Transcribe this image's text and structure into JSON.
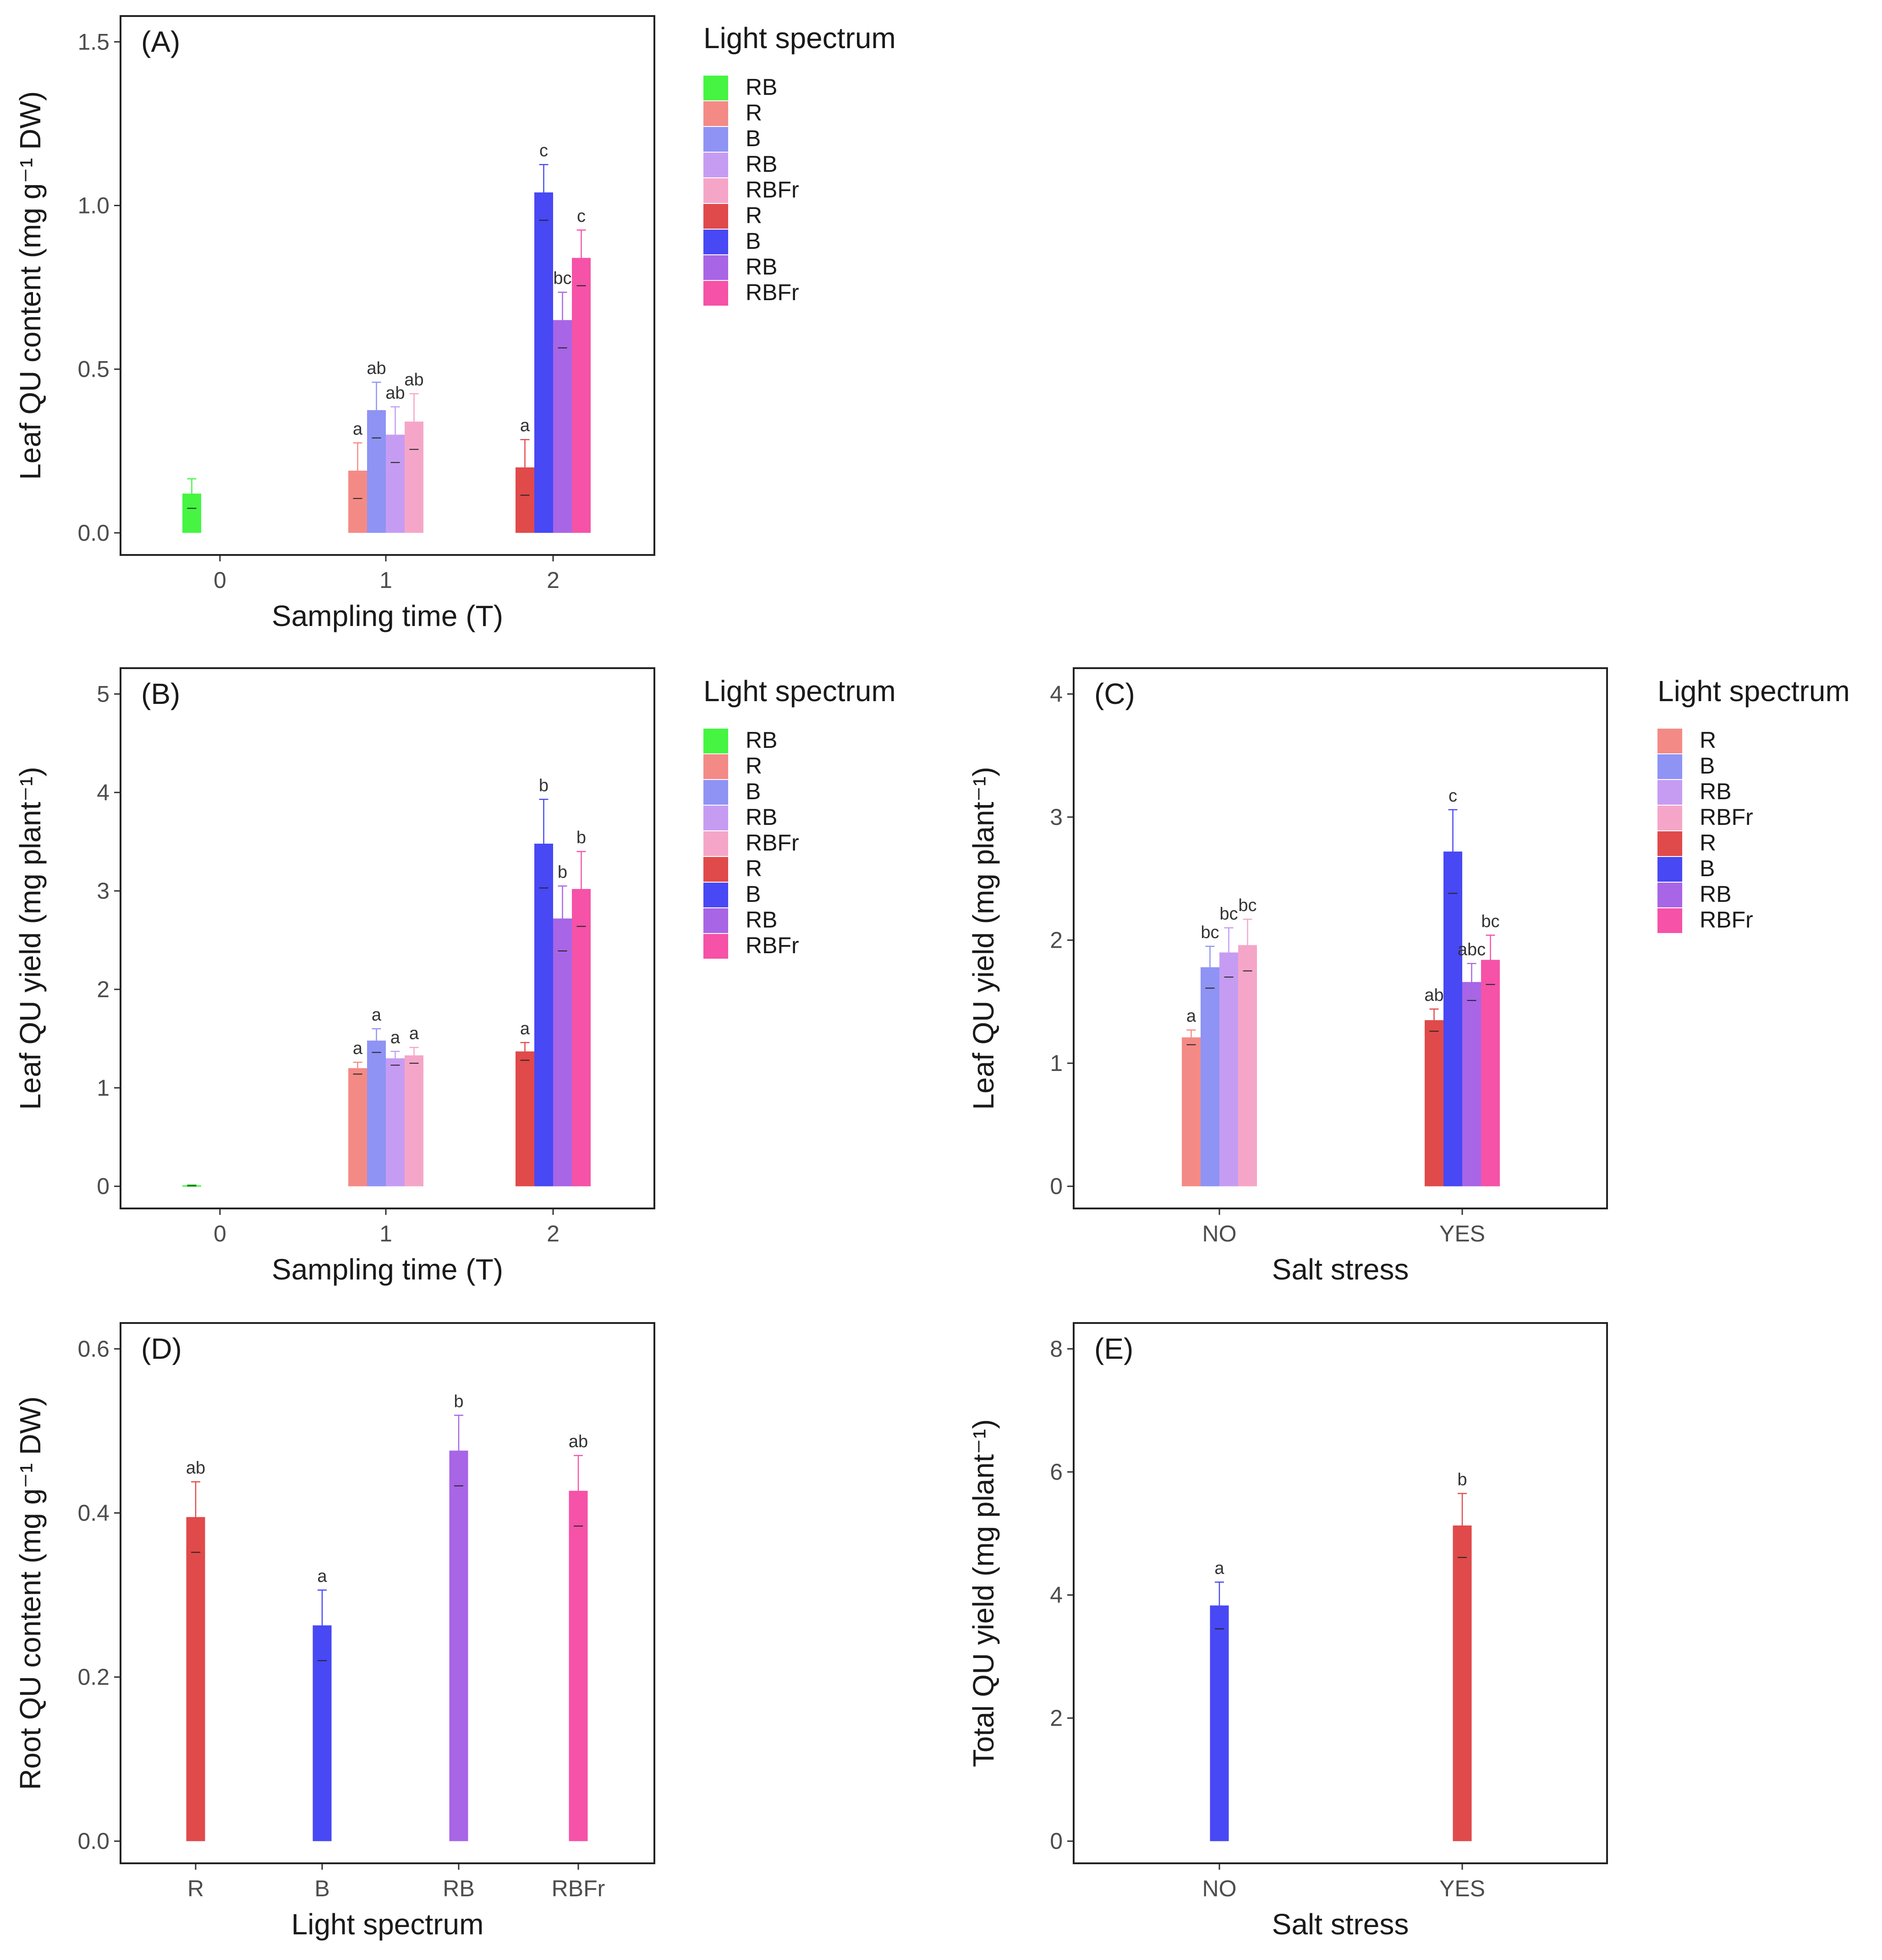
{
  "chart_data": [
    {
      "id": "A",
      "type": "bar",
      "panel_label": "(A)",
      "xlabel": "Sampling time (T)",
      "ylabel": "Leaf QU content (mg g⁻¹ DW)",
      "ylim": [
        0,
        1.5
      ],
      "yticks": [
        "0.0",
        "0.5",
        "1.0",
        "1.5"
      ],
      "ytick_values": [
        0,
        0.5,
        1.0,
        1.5
      ],
      "categories": [
        "0",
        "1",
        "2"
      ],
      "legend": {
        "title": "Light spectrum",
        "entries": [
          {
            "label": "RB",
            "color": "#45f542"
          },
          {
            "label": "R",
            "color": "#f48a85"
          },
          {
            "label": "B",
            "color": "#8f93f4"
          },
          {
            "label": "RB",
            "color": "#c69cf3"
          },
          {
            "label": "RBFr",
            "color": "#f5a6c8"
          },
          {
            "label": "R",
            "color": "#e04a4a"
          },
          {
            "label": "B",
            "color": "#4848f4"
          },
          {
            "label": "RB",
            "color": "#a865e6"
          },
          {
            "label": "RBFr",
            "color": "#f552a8"
          }
        ]
      },
      "bars": [
        {
          "category": "0",
          "offset": -1.5,
          "series": "RB",
          "color": "#45f542",
          "value": 0.12,
          "err": 0.045,
          "sig": ""
        },
        {
          "category": "1",
          "offset": -1.5,
          "series": "R",
          "color": "#f48a85",
          "value": 0.19,
          "err": 0.085,
          "sig": "a"
        },
        {
          "category": "1",
          "offset": -0.5,
          "series": "B",
          "color": "#8f93f4",
          "value": 0.375,
          "err": 0.085,
          "sig": "ab"
        },
        {
          "category": "1",
          "offset": 0.5,
          "series": "RB",
          "color": "#c69cf3",
          "value": 0.3,
          "err": 0.085,
          "sig": "ab"
        },
        {
          "category": "1",
          "offset": 1.5,
          "series": "RBFr",
          "color": "#f5a6c8",
          "value": 0.34,
          "err": 0.085,
          "sig": "ab"
        },
        {
          "category": "2",
          "offset": -1.5,
          "series": "R",
          "color": "#e04a4a",
          "value": 0.2,
          "err": 0.085,
          "sig": "a"
        },
        {
          "category": "2",
          "offset": -0.5,
          "series": "B",
          "color": "#4848f4",
          "value": 1.04,
          "err": 0.085,
          "sig": "c"
        },
        {
          "category": "2",
          "offset": 0.5,
          "series": "RB",
          "color": "#a865e6",
          "value": 0.65,
          "err": 0.085,
          "sig": "bc"
        },
        {
          "category": "2",
          "offset": 1.5,
          "series": "RBFr",
          "color": "#f552a8",
          "value": 0.84,
          "err": 0.085,
          "sig": "c"
        }
      ]
    },
    {
      "id": "B",
      "type": "bar",
      "panel_label": "(B)",
      "xlabel": "Sampling time (T)",
      "ylabel": "Leaf QU yield (mg plant⁻¹)",
      "ylim": [
        0,
        5
      ],
      "yticks": [
        "0",
        "1",
        "2",
        "3",
        "4",
        "5"
      ],
      "ytick_values": [
        0,
        1,
        2,
        3,
        4,
        5
      ],
      "categories": [
        "0",
        "1",
        "2"
      ],
      "legend": {
        "title": "Light spectrum",
        "entries": [
          {
            "label": "RB",
            "color": "#45f542"
          },
          {
            "label": "R",
            "color": "#f48a85"
          },
          {
            "label": "B",
            "color": "#8f93f4"
          },
          {
            "label": "RB",
            "color": "#c69cf3"
          },
          {
            "label": "RBFr",
            "color": "#f5a6c8"
          },
          {
            "label": "R",
            "color": "#e04a4a"
          },
          {
            "label": "B",
            "color": "#4848f4"
          },
          {
            "label": "RB",
            "color": "#a865e6"
          },
          {
            "label": "RBFr",
            "color": "#f552a8"
          }
        ]
      },
      "bars": [
        {
          "category": "0",
          "offset": -1.5,
          "series": "RB",
          "color": "#45f542",
          "value": 0.01,
          "err": 0.005,
          "sig": ""
        },
        {
          "category": "1",
          "offset": -1.5,
          "series": "R",
          "color": "#f48a85",
          "value": 1.2,
          "err": 0.06,
          "sig": "a"
        },
        {
          "category": "1",
          "offset": -0.5,
          "series": "B",
          "color": "#8f93f4",
          "value": 1.48,
          "err": 0.12,
          "sig": "a"
        },
        {
          "category": "1",
          "offset": 0.5,
          "series": "RB",
          "color": "#c69cf3",
          "value": 1.3,
          "err": 0.07,
          "sig": "a"
        },
        {
          "category": "1",
          "offset": 1.5,
          "series": "RBFr",
          "color": "#f5a6c8",
          "value": 1.33,
          "err": 0.08,
          "sig": "a"
        },
        {
          "category": "2",
          "offset": -1.5,
          "series": "R",
          "color": "#e04a4a",
          "value": 1.37,
          "err": 0.09,
          "sig": "a"
        },
        {
          "category": "2",
          "offset": -0.5,
          "series": "B",
          "color": "#4848f4",
          "value": 3.48,
          "err": 0.45,
          "sig": "b"
        },
        {
          "category": "2",
          "offset": 0.5,
          "series": "RB",
          "color": "#a865e6",
          "value": 2.72,
          "err": 0.33,
          "sig": "b"
        },
        {
          "category": "2",
          "offset": 1.5,
          "series": "RBFr",
          "color": "#f552a8",
          "value": 3.02,
          "err": 0.38,
          "sig": "b"
        }
      ]
    },
    {
      "id": "C",
      "type": "bar",
      "panel_label": "(C)",
      "xlabel": "Salt stress",
      "ylabel": "Leaf QU yield (mg plant⁻¹)",
      "ylim": [
        0,
        4
      ],
      "yticks": [
        "0",
        "1",
        "2",
        "3",
        "4"
      ],
      "ytick_values": [
        0,
        1,
        2,
        3,
        4
      ],
      "categories": [
        "NO",
        "YES"
      ],
      "legend": {
        "title": "Light spectrum",
        "entries": [
          {
            "label": "R",
            "color": "#f48a85"
          },
          {
            "label": "B",
            "color": "#8f93f4"
          },
          {
            "label": "RB",
            "color": "#c69cf3"
          },
          {
            "label": "RBFr",
            "color": "#f5a6c8"
          },
          {
            "label": "R",
            "color": "#e04a4a"
          },
          {
            "label": "B",
            "color": "#4848f4"
          },
          {
            "label": "RB",
            "color": "#a865e6"
          },
          {
            "label": "RBFr",
            "color": "#f552a8"
          }
        ]
      },
      "bars": [
        {
          "category": "NO",
          "offset": -1.5,
          "series": "R",
          "color": "#f48a85",
          "value": 1.21,
          "err": 0.06,
          "sig": "a"
        },
        {
          "category": "NO",
          "offset": -0.5,
          "series": "B",
          "color": "#8f93f4",
          "value": 1.78,
          "err": 0.17,
          "sig": "bc"
        },
        {
          "category": "NO",
          "offset": 0.5,
          "series": "RB",
          "color": "#c69cf3",
          "value": 1.9,
          "err": 0.2,
          "sig": "bc"
        },
        {
          "category": "NO",
          "offset": 1.5,
          "series": "RBFr",
          "color": "#f5a6c8",
          "value": 1.96,
          "err": 0.21,
          "sig": "bc"
        },
        {
          "category": "YES",
          "offset": -1.5,
          "series": "R",
          "color": "#e04a4a",
          "value": 1.35,
          "err": 0.09,
          "sig": "ab"
        },
        {
          "category": "YES",
          "offset": -0.5,
          "series": "B",
          "color": "#4848f4",
          "value": 2.72,
          "err": 0.34,
          "sig": "c"
        },
        {
          "category": "YES",
          "offset": 0.5,
          "series": "RB",
          "color": "#a865e6",
          "value": 1.66,
          "err": 0.15,
          "sig": "abc"
        },
        {
          "category": "YES",
          "offset": 1.5,
          "series": "RBFr",
          "color": "#f552a8",
          "value": 1.84,
          "err": 0.2,
          "sig": "bc"
        }
      ]
    },
    {
      "id": "D",
      "type": "bar",
      "panel_label": "(D)",
      "xlabel": "Light spectrum",
      "ylabel": "Root QU content (mg g⁻¹ DW)",
      "ylim": [
        0,
        0.6
      ],
      "yticks": [
        "0.0",
        "0.2",
        "0.4",
        "0.6"
      ],
      "ytick_values": [
        0,
        0.2,
        0.4,
        0.6
      ],
      "categories": [
        "R",
        "B",
        "RB",
        "RBFr"
      ],
      "bars": [
        {
          "category": "R",
          "offset": 0,
          "series": "R",
          "color": "#e04a4a",
          "value": 0.395,
          "err": 0.043,
          "sig": "ab"
        },
        {
          "category": "B",
          "offset": 0,
          "series": "B",
          "color": "#4848f4",
          "value": 0.263,
          "err": 0.043,
          "sig": "a"
        },
        {
          "category": "RB",
          "offset": 0,
          "series": "RB",
          "color": "#a865e6",
          "value": 0.476,
          "err": 0.043,
          "sig": "b"
        },
        {
          "category": "RBFr",
          "offset": 0,
          "series": "RBFr",
          "color": "#f552a8",
          "value": 0.427,
          "err": 0.043,
          "sig": "ab"
        }
      ]
    },
    {
      "id": "E",
      "type": "bar",
      "panel_label": "(E)",
      "xlabel": "Salt stress",
      "ylabel": "Total QU yield (mg plant⁻¹)",
      "ylim": [
        0,
        8
      ],
      "yticks": [
        "0",
        "2",
        "4",
        "6",
        "8"
      ],
      "ytick_values": [
        0,
        2,
        4,
        6,
        8
      ],
      "categories": [
        "NO",
        "YES"
      ],
      "bars": [
        {
          "category": "NO",
          "offset": 0,
          "series": "NO",
          "color": "#4848f4",
          "value": 3.83,
          "err": 0.38,
          "sig": "a"
        },
        {
          "category": "YES",
          "offset": 0,
          "series": "YES",
          "color": "#e04a4a",
          "value": 5.13,
          "err": 0.52,
          "sig": "b"
        }
      ]
    }
  ]
}
